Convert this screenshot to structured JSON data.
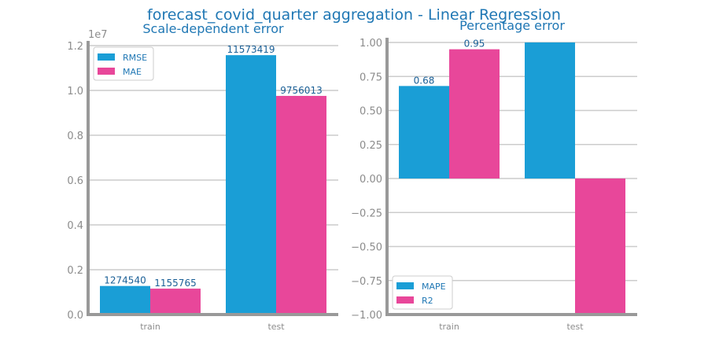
{
  "suptitle": "forecast_covid_quarter aggregation - Linear Regression",
  "colors": {
    "series_a": "#1a9ed6",
    "series_b": "#e8479a",
    "title": "#1f77b4",
    "tick": "#8c8c8c",
    "grid": "#cccccc",
    "axis": "#999999"
  },
  "chart_data": [
    {
      "type": "bar",
      "title": "Scale-dependent error",
      "categories": [
        "train",
        "test"
      ],
      "series": [
        {
          "name": "RMSE",
          "values": [
            1274540,
            11573419
          ]
        },
        {
          "name": "MAE",
          "values": [
            1155765,
            9756013
          ]
        }
      ],
      "data_labels": [
        [
          "1274540",
          "11573419"
        ],
        [
          "1155765",
          "9756013"
        ]
      ],
      "ylim": [
        0,
        12000000
      ],
      "yticks": [
        0,
        2000000,
        4000000,
        6000000,
        8000000,
        10000000,
        12000000
      ],
      "ytick_labels": [
        "0.0",
        "0.2",
        "0.4",
        "0.6",
        "0.8",
        "1.0",
        "1.2"
      ],
      "offset_label": "1e7",
      "legend": "top-left",
      "grid": true
    },
    {
      "type": "bar",
      "title": "Percentage error",
      "categories": [
        "train",
        "test"
      ],
      "series": [
        {
          "name": "MAPE",
          "values": [
            0.68,
            1.0
          ]
        },
        {
          "name": "R2",
          "values": [
            0.95,
            -1.0
          ]
        }
      ],
      "data_labels": [
        [
          "0.68",
          ""
        ],
        [
          "0.95",
          ""
        ]
      ],
      "ylim": [
        -1.0,
        1.0
      ],
      "yticks": [
        -1.0,
        -0.75,
        -0.5,
        -0.25,
        0.0,
        0.25,
        0.5,
        0.75,
        1.0
      ],
      "ytick_labels": [
        "−1.00",
        "−0.75",
        "−0.50",
        "−0.25",
        "0.00",
        "0.25",
        "0.50",
        "0.75",
        "1.00"
      ],
      "offset_label": "",
      "legend": "bottom-left",
      "grid": true
    }
  ]
}
